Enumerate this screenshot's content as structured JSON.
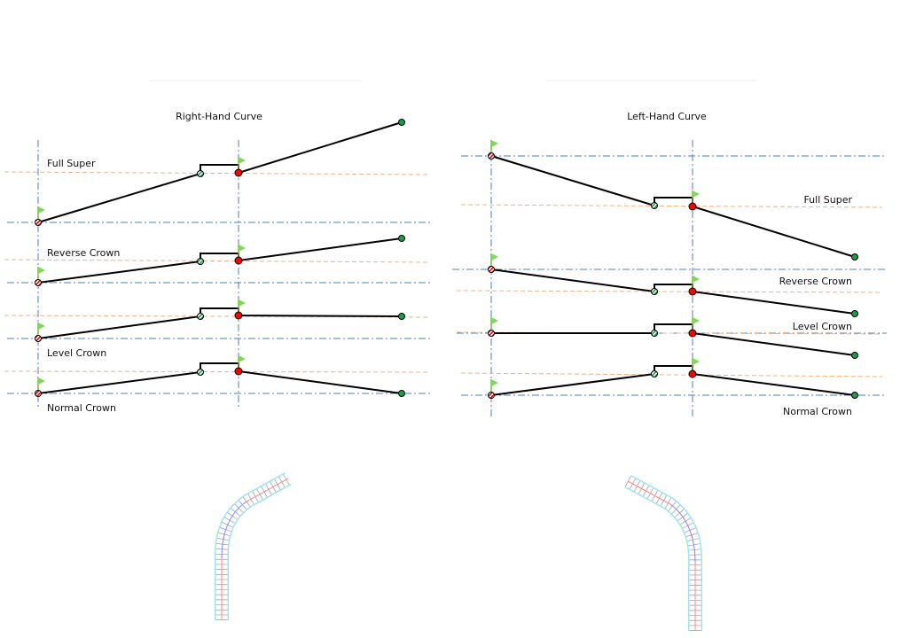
{
  "right_hand": {
    "title": "Right-Hand Curve",
    "labels": [
      "Full Super",
      "Reverse Crown",
      "Level Crown",
      "Normal Crown"
    ]
  },
  "left_hand": {
    "title": "Left-Hand Curve",
    "labels": [
      "Full Super",
      "Reverse Crown",
      "Level Crown",
      "Normal Crown"
    ]
  },
  "colors": {
    "centerline": "#4a7fc1",
    "offset": "#f4b183",
    "start": "#ff0000",
    "end": "#1a9e4a",
    "flag": "#7ed957",
    "plan_edge": "#9fe3f5"
  }
}
